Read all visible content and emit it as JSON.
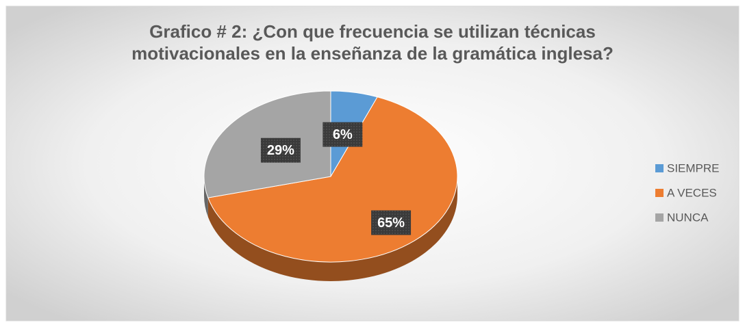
{
  "chart_data": {
    "type": "pie",
    "title": "Grafico #  2: ¿Con que frecuencia se utilizan técnicas motivacionales en la enseñanza de la gramática inglesa?",
    "categories": [
      "SIEMPRE",
      "A VECES",
      "NUNCA"
    ],
    "values": [
      6,
      65,
      29
    ],
    "value_labels": [
      "6%",
      "65%",
      "29%"
    ],
    "colors": [
      "#5b9bd5",
      "#ed7d31",
      "#a5a5a5"
    ],
    "legend": "right"
  }
}
